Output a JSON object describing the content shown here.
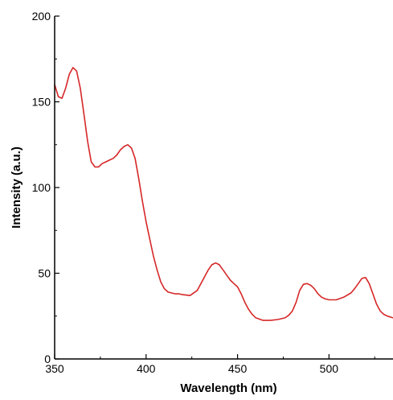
{
  "chart_data": {
    "type": "line",
    "xlabel": "Wavelength (nm)",
    "ylabel": "Intensity (a.u.)",
    "xlim": [
      350,
      535
    ],
    "ylim": [
      0,
      200
    ],
    "xticks": [
      350,
      400,
      450,
      500
    ],
    "yticks": [
      0,
      50,
      100,
      150,
      200
    ],
    "x_tick_labels": [
      "350",
      "400",
      "450",
      "500"
    ],
    "y_tick_labels": [
      "0",
      "50",
      "100",
      "150",
      "200"
    ],
    "grid": false,
    "series": [
      {
        "color": "#d62728",
        "x": [
          350,
          352,
          354,
          356,
          358,
          360,
          362,
          364,
          366,
          368,
          370,
          372,
          374,
          376,
          378,
          380,
          382,
          384,
          386,
          388,
          390,
          392,
          394,
          396,
          398,
          400,
          402,
          404,
          406,
          408,
          410,
          412,
          414,
          416,
          418,
          420,
          424,
          428,
          432,
          434,
          436,
          438,
          440,
          442,
          444,
          446,
          448,
          450,
          452,
          454,
          456,
          458,
          460,
          464,
          468,
          472,
          476,
          478,
          480,
          482,
          484,
          486,
          488,
          490,
          492,
          494,
          496,
          498,
          500,
          504,
          508,
          512,
          514,
          516,
          518,
          520,
          522,
          524,
          526,
          528,
          530,
          532,
          535
        ],
        "y": [
          160,
          153,
          152,
          158,
          166,
          170,
          168,
          158,
          143,
          127,
          115,
          112,
          112,
          114,
          115,
          116,
          117,
          119,
          122,
          124,
          125,
          123,
          117,
          105,
          92,
          80,
          70,
          60,
          52,
          45,
          41,
          39,
          38.5,
          38,
          38,
          37.5,
          37,
          40,
          48,
          52,
          55,
          56,
          55,
          52,
          49,
          46,
          44,
          42,
          38,
          33,
          29,
          26,
          24,
          22.5,
          22.5,
          23,
          24,
          25.5,
          28,
          33,
          40,
          43.5,
          44,
          43,
          41,
          38,
          36,
          35,
          34.5,
          34.5,
          36,
          38.5,
          41,
          44,
          47,
          47.5,
          44,
          38,
          32,
          28,
          26,
          25,
          24
        ]
      }
    ]
  }
}
